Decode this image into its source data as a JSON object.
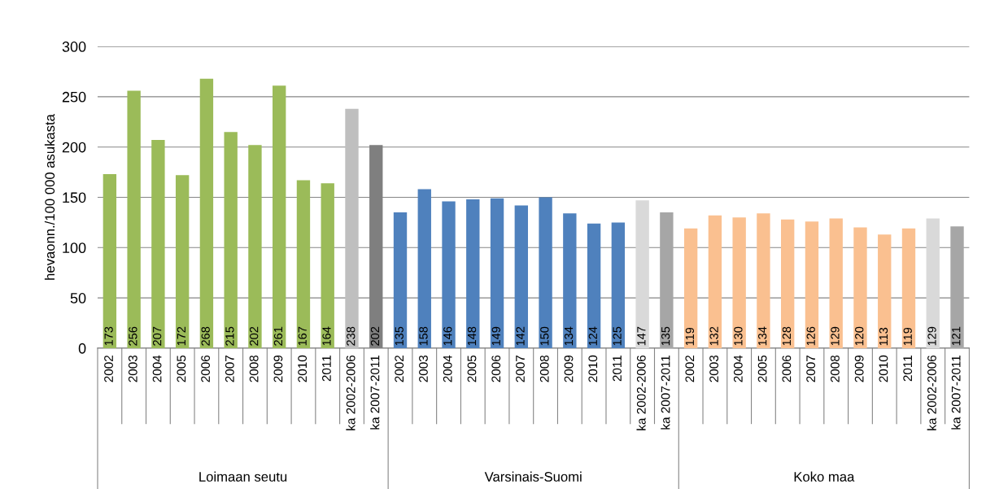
{
  "chart_data": {
    "type": "bar",
    "ylabel": "hevaonn./100 000 asukasta",
    "categories": [
      "2002",
      "2003",
      "2004",
      "2005",
      "2006",
      "2007",
      "2008",
      "2009",
      "2010",
      "2011",
      "ka 2002-2006",
      "ka 2007-2011",
      "2002",
      "2003",
      "2004",
      "2005",
      "2006",
      "2007",
      "2008",
      "2009",
      "2010",
      "2011",
      "ka 2002-2006",
      "ka 2007-2011",
      "2002",
      "2003",
      "2004",
      "2005",
      "2006",
      "2007",
      "2008",
      "2009",
      "2010",
      "2011",
      "ka 2002-2006",
      "ka 2007-2011"
    ],
    "values": [
      173,
      256,
      207,
      172,
      268,
      215,
      202,
      261,
      167,
      164,
      238,
      202,
      135,
      158,
      146,
      148,
      149,
      142,
      150,
      134,
      124,
      125,
      147,
      135,
      119,
      132,
      130,
      134,
      128,
      126,
      129,
      120,
      113,
      119,
      129,
      121
    ],
    "colors": [
      "#9bbb59",
      "#9bbb59",
      "#9bbb59",
      "#9bbb59",
      "#9bbb59",
      "#9bbb59",
      "#9bbb59",
      "#9bbb59",
      "#9bbb59",
      "#9bbb59",
      "#bfbfbf",
      "#7f7f7f",
      "#4f81bd",
      "#4f81bd",
      "#4f81bd",
      "#4f81bd",
      "#4f81bd",
      "#4f81bd",
      "#4f81bd",
      "#4f81bd",
      "#4f81bd",
      "#4f81bd",
      "#d9d9d9",
      "#a6a6a6",
      "#fac090",
      "#fac090",
      "#fac090",
      "#fac090",
      "#fac090",
      "#fac090",
      "#fac090",
      "#fac090",
      "#fac090",
      "#fac090",
      "#d9d9d9",
      "#a6a6a6"
    ],
    "annotations": [
      "Loimaan seutu",
      "Varsinais-Suomi",
      "Koko maa"
    ],
    "ylim": [
      0,
      300
    ],
    "yticks": [
      0,
      50,
      100,
      150,
      200,
      250,
      300
    ],
    "grid": "y",
    "data_labels": true,
    "legend": false
  }
}
